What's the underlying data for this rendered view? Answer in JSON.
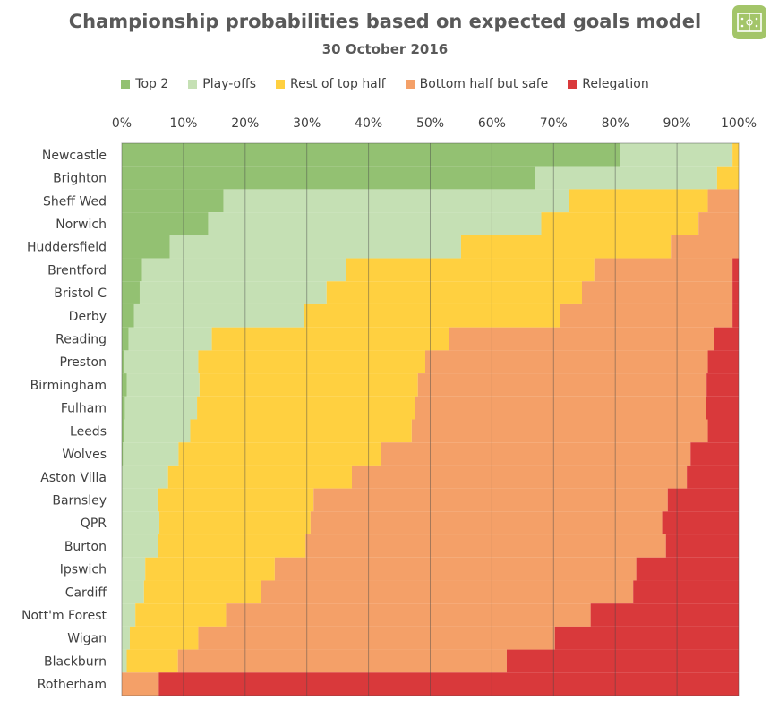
{
  "header": {
    "title": "Championship probabilities based on expected goals model",
    "subtitle": "30 October 2016",
    "logo_icon": "pitch-logo-icon"
  },
  "chart_data": {
    "type": "bar",
    "orientation": "horizontal",
    "stacked": true,
    "percent": true,
    "title": "Championship probabilities based on expected goals model",
    "subtitle": "30 October 2016",
    "xlim": [
      0,
      100
    ],
    "x_ticks": [
      "0%",
      "10%",
      "20%",
      "30%",
      "40%",
      "50%",
      "60%",
      "70%",
      "80%",
      "90%",
      "100%"
    ],
    "x_axis_position": "top",
    "grid": true,
    "legend_position": "top",
    "categories": [
      "Newcastle",
      "Brighton",
      "Sheff Wed",
      "Norwich",
      "Huddersfield",
      "Brentford",
      "Bristol C",
      "Derby",
      "Reading",
      "Preston",
      "Birmingham",
      "Fulham",
      "Leeds",
      "Wolves",
      "Aston Villa",
      "Barnsley",
      "QPR",
      "Burton",
      "Ipswich",
      "Cardiff",
      "Nott'm Forest",
      "Wigan",
      "Blackburn",
      "Rotherham"
    ],
    "series": [
      {
        "name": "Top 2",
        "color": "#93c172",
        "values": [
          80.8,
          67.0,
          16.5,
          14.0,
          7.8,
          3.3,
          2.9,
          2.0,
          1.1,
          0.4,
          0.8,
          0.5,
          0.4,
          0.2,
          0.1,
          0.1,
          0.1,
          0.1,
          0.0,
          0.0,
          0.0,
          0.0,
          0.0,
          0.0
        ]
      },
      {
        "name": "Play-offs",
        "color": "#c5e0b4",
        "values": [
          18.2,
          29.5,
          56.0,
          54.0,
          47.2,
          33.0,
          30.3,
          27.5,
          13.5,
          12.0,
          11.8,
          11.7,
          10.7,
          9.0,
          7.4,
          5.7,
          6.0,
          5.8,
          3.8,
          3.6,
          2.2,
          1.3,
          0.8,
          0.0
        ]
      },
      {
        "name": "Rest of top half",
        "color": "#ffd040",
        "values": [
          1.0,
          3.5,
          22.5,
          25.5,
          34.0,
          40.3,
          41.4,
          41.5,
          38.4,
          36.8,
          35.4,
          35.3,
          35.9,
          32.8,
          29.8,
          25.3,
          24.5,
          23.9,
          21.0,
          19.0,
          14.7,
          11.1,
          8.3,
          0.0
        ]
      },
      {
        "name": "Bottom half but safe",
        "color": "#f4a068",
        "values": [
          0.0,
          0.0,
          5.0,
          6.5,
          11.0,
          22.4,
          24.4,
          28.0,
          43.0,
          45.8,
          46.8,
          47.2,
          48.0,
          50.2,
          54.3,
          57.4,
          57.0,
          58.4,
          58.6,
          60.3,
          59.1,
          57.8,
          53.3,
          6.0
        ]
      },
      {
        "name": "Relegation",
        "color": "#d9393b",
        "values": [
          0.0,
          0.0,
          0.0,
          0.0,
          0.0,
          1.0,
          1.0,
          1.0,
          4.0,
          5.0,
          5.2,
          5.3,
          5.0,
          7.8,
          8.4,
          11.5,
          12.4,
          11.8,
          16.6,
          17.1,
          24.0,
          29.8,
          37.6,
          94.0
        ]
      }
    ]
  }
}
